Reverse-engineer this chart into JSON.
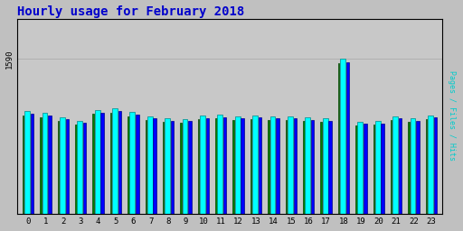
{
  "title": "Hourly usage for February 2018",
  "hours": [
    0,
    1,
    2,
    3,
    4,
    5,
    6,
    7,
    8,
    9,
    10,
    11,
    12,
    13,
    14,
    15,
    16,
    17,
    18,
    19,
    20,
    21,
    22,
    23
  ],
  "hits": [
    1050,
    1030,
    990,
    950,
    1065,
    1080,
    1040,
    1000,
    980,
    970,
    1005,
    1015,
    1000,
    1010,
    1000,
    1000,
    988,
    980,
    1590,
    945,
    950,
    1000,
    978,
    1010
  ],
  "files": [
    1020,
    1002,
    965,
    928,
    1038,
    1052,
    1012,
    975,
    955,
    948,
    980,
    990,
    975,
    985,
    975,
    975,
    963,
    955,
    1555,
    920,
    925,
    975,
    953,
    985
  ],
  "pages": [
    1008,
    990,
    953,
    916,
    1026,
    1038,
    1000,
    963,
    943,
    936,
    968,
    978,
    963,
    973,
    963,
    963,
    951,
    943,
    1540,
    908,
    913,
    963,
    941,
    973
  ],
  "ytick_val": 1590,
  "bar_cyan": "#00ffff",
  "bar_blue": "#0000ff",
  "bar_green": "#008000",
  "edge_cyan": "#008888",
  "edge_blue": "#000088",
  "edge_green": "#004400",
  "bg_color": "#c0c0c0",
  "plot_bg_color": "#c8c8c8",
  "title_color": "#0000cc",
  "grid_color": "#b0b0b0",
  "ylim_max": 2000,
  "ylabel_text": "Pages / Files / Hits",
  "ylabel_color": "#00cccc"
}
